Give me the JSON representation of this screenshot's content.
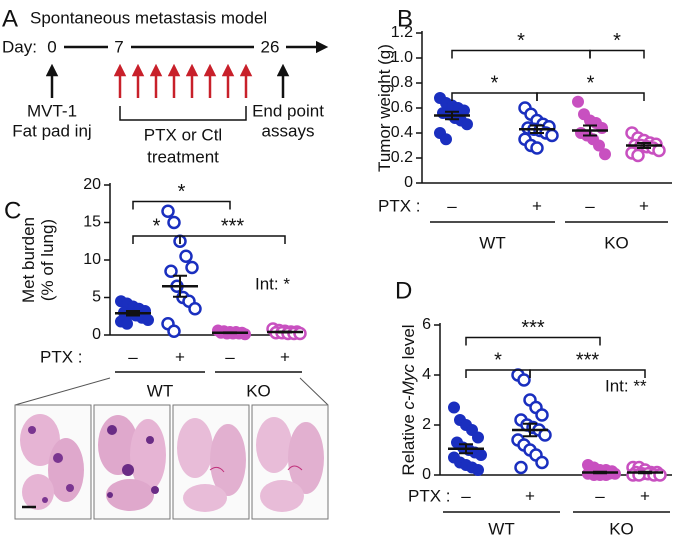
{
  "timeline": {
    "panel_label": "A",
    "title": "Spontaneous metastasis model",
    "day_label": "Day:",
    "days": [
      "0",
      "7",
      "26"
    ],
    "start_note": [
      "MVT-1",
      "Fat pad inj"
    ],
    "treatment_note": [
      "PTX or Ctl",
      "treatment"
    ],
    "end_note": [
      "End point",
      "assays"
    ]
  },
  "chart_data": [
    {
      "type": "dotplot",
      "panel_label": "B",
      "ylabel": [
        [
          "Tumor weight (g)"
        ]
      ],
      "ylim": [
        0,
        1.2
      ],
      "yticks": [
        0,
        0.2,
        0.4,
        0.6,
        0.8,
        {
          "value": 1.0,
          "label": "1.0"
        },
        1.2
      ],
      "ptx_label": "PTX :",
      "categories": [
        "–",
        "+",
        "–",
        "+"
      ],
      "groups": [
        "WT",
        "KO"
      ],
      "colors": [
        "#1a2fbf",
        "#1a2fbf",
        "#c850c0",
        "#c850c0"
      ],
      "filled": [
        true,
        false,
        true,
        false
      ],
      "points": [
        [
          0.68,
          0.64,
          0.62,
          0.6,
          0.58,
          0.56,
          0.55,
          0.52,
          0.5,
          0.47,
          0.4,
          0.35
        ],
        [
          0.6,
          0.55,
          0.5,
          0.47,
          0.45,
          0.44,
          0.43,
          0.42,
          0.4,
          0.38,
          0.35,
          0.3,
          0.28
        ],
        [
          0.65,
          0.55,
          0.5,
          0.48,
          0.44,
          0.4,
          0.38,
          0.35,
          0.3,
          0.23
        ],
        [
          0.4,
          0.36,
          0.34,
          0.32,
          0.31,
          0.3,
          0.3,
          0.29,
          0.28,
          0.26,
          0.24,
          0.22
        ]
      ],
      "means": [
        0.54,
        0.43,
        0.42,
        0.3
      ],
      "sems": [
        0.03,
        0.03,
        0.04,
        0.02
      ],
      "significance": [
        "*",
        "*",
        "*",
        "*"
      ]
    },
    {
      "type": "dotplot",
      "panel_label": "C",
      "ylabel": [
        [
          "Met burden"
        ],
        [
          "(% of lung)"
        ]
      ],
      "ylim": [
        0,
        20
      ],
      "yticks": [
        0,
        5,
        10,
        15,
        20
      ],
      "ptx_label": "PTX :",
      "categories": [
        "–",
        "+",
        "–",
        "+"
      ],
      "groups": [
        "WT",
        "KO"
      ],
      "colors": [
        "#1a2fbf",
        "#1a2fbf",
        "#c850c0",
        "#c850c0"
      ],
      "filled": [
        true,
        false,
        true,
        false
      ],
      "points": [
        [
          4.5,
          4.2,
          3.8,
          3.5,
          3.2,
          3.0,
          2.8,
          2.6,
          2.3,
          2.0,
          1.8,
          1.5
        ],
        [
          16.5,
          15.0,
          12.5,
          10.5,
          9.0,
          8.5,
          6.5,
          5.0,
          4.5,
          3.5,
          1.5,
          0.5
        ],
        [
          0.6,
          0.5,
          0.4,
          0.4,
          0.3,
          0.3,
          0.2,
          0.2,
          0.2,
          0.1
        ],
        [
          0.8,
          0.6,
          0.5,
          0.4,
          0.4,
          0.3,
          0.3,
          0.2,
          0.2,
          0.2
        ]
      ],
      "means": [
        2.9,
        6.5,
        0.3,
        0.4
      ],
      "sems": [
        0.3,
        1.4,
        0.05,
        0.06
      ],
      "significance": [
        "*",
        "*",
        "***"
      ],
      "interaction": "Int: *"
    },
    {
      "type": "dotplot",
      "panel_label": "D",
      "ylabel": [
        [
          "Relative ",
          "c-Myc",
          " level"
        ]
      ],
      "ylabel_italic": [
        1
      ],
      "ylim": [
        0,
        6
      ],
      "yticks": [
        0,
        2,
        4,
        6
      ],
      "ptx_label": "PTX :",
      "categories": [
        "–",
        "+",
        "–",
        "+"
      ],
      "groups": [
        "WT",
        "KO"
      ],
      "colors": [
        "#1a2fbf",
        "#1a2fbf",
        "#c850c0",
        "#c850c0"
      ],
      "filled": [
        true,
        false,
        true,
        false
      ],
      "points": [
        [
          2.7,
          2.2,
          2.0,
          1.8,
          1.5,
          1.3,
          1.1,
          1.0,
          0.9,
          0.8,
          0.7,
          0.5,
          0.4,
          0.3,
          0.2
        ],
        [
          4.0,
          3.8,
          3.0,
          2.7,
          2.4,
          2.2,
          2.0,
          1.9,
          1.8,
          1.6,
          1.4,
          1.2,
          1.0,
          0.8,
          0.5,
          0.3
        ],
        [
          0.4,
          0.3,
          0.2,
          0.2,
          0.15,
          0.1,
          0.1,
          0.1,
          0.05,
          0.05,
          0.05,
          0,
          0,
          0
        ],
        [
          0.3,
          0.3,
          0.2,
          0.1,
          0.1,
          0.1,
          0.05,
          0.05,
          0,
          0,
          0,
          0
        ]
      ],
      "means": [
        1.05,
        1.8,
        0.1,
        0.1
      ],
      "sems": [
        0.18,
        0.25,
        0.03,
        0.03
      ],
      "significance": [
        "***",
        "*",
        "***"
      ],
      "interaction": "Int: **"
    }
  ]
}
